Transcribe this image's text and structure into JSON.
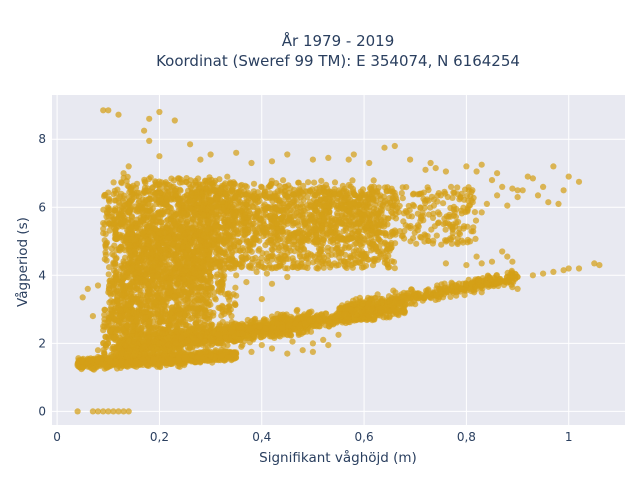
{
  "chart_data": {
    "type": "scatter",
    "title_line1": "År 1979 - 2019",
    "title_line2": "Koordinat (Sweref 99 TM): E 354074, N 6164254",
    "xlabel": "Signifikant våghöjd (m)",
    "ylabel": "Vågperiod (s)",
    "xlim": [
      -0.01,
      1.11
    ],
    "ylim": [
      -0.4,
      9.3
    ],
    "grid": true,
    "legend": "none",
    "marker_color": "#D4A017",
    "background_color": "#E8E9F1",
    "x_ticks": [
      {
        "value": 0,
        "label": "0"
      },
      {
        "value": 0.2,
        "label": "0,2"
      },
      {
        "value": 0.4,
        "label": "0,4"
      },
      {
        "value": 0.6,
        "label": "0,6"
      },
      {
        "value": 0.8,
        "label": "0,8"
      },
      {
        "value": 1,
        "label": "1"
      }
    ],
    "y_ticks": [
      {
        "value": 0,
        "label": "0"
      },
      {
        "value": 2,
        "label": "2"
      },
      {
        "value": 4,
        "label": "4"
      },
      {
        "value": 6,
        "label": "6"
      },
      {
        "value": 8,
        "label": "8"
      }
    ],
    "points": [
      [
        0.09,
        8.85
      ],
      [
        0.1,
        8.85
      ],
      [
        0.12,
        8.72
      ],
      [
        0.2,
        8.8
      ],
      [
        0.18,
        8.6
      ],
      [
        0.23,
        8.55
      ],
      [
        0.17,
        8.25
      ],
      [
        0.18,
        7.95
      ],
      [
        0.26,
        7.85
      ],
      [
        0.2,
        7.5
      ],
      [
        0.14,
        7.2
      ],
      [
        0.28,
        7.4
      ],
      [
        0.3,
        7.55
      ],
      [
        0.35,
        7.6
      ],
      [
        0.13,
        7.0
      ],
      [
        0.38,
        7.3
      ],
      [
        0.42,
        7.35
      ],
      [
        0.45,
        7.55
      ],
      [
        0.5,
        7.4
      ],
      [
        0.53,
        7.45
      ],
      [
        0.58,
        7.55
      ],
      [
        0.57,
        7.4
      ],
      [
        0.61,
        7.3
      ],
      [
        0.64,
        7.75
      ],
      [
        0.66,
        7.8
      ],
      [
        0.69,
        7.4
      ],
      [
        0.72,
        7.1
      ],
      [
        0.73,
        7.3
      ],
      [
        0.74,
        7.15
      ],
      [
        0.76,
        7.05
      ],
      [
        0.8,
        7.2
      ],
      [
        0.82,
        7.05
      ],
      [
        0.83,
        7.25
      ],
      [
        0.85,
        6.8
      ],
      [
        0.86,
        7.0
      ],
      [
        0.87,
        6.6
      ],
      [
        0.89,
        6.55
      ],
      [
        0.9,
        6.5
      ],
      [
        0.92,
        6.9
      ],
      [
        0.93,
        6.85
      ],
      [
        0.95,
        6.6
      ],
      [
        0.97,
        7.2
      ],
      [
        0.99,
        6.5
      ],
      [
        1.0,
        6.9
      ],
      [
        1.02,
        6.75
      ],
      [
        0.94,
        6.35
      ],
      [
        0.98,
        6.1
      ],
      [
        0.96,
        6.15
      ],
      [
        0.88,
        6.05
      ],
      [
        0.84,
        6.1
      ],
      [
        0.83,
        5.85
      ],
      [
        0.79,
        5.9
      ],
      [
        0.78,
        5.95
      ],
      [
        0.75,
        6.35
      ],
      [
        0.77,
        6.6
      ],
      [
        0.81,
        6.45
      ],
      [
        0.86,
        6.35
      ],
      [
        0.91,
        6.5
      ],
      [
        0.9,
        6.3
      ],
      [
        0.81,
        6.2
      ],
      [
        0.71,
        5.6
      ],
      [
        0.67,
        5.3
      ],
      [
        0.63,
        5.5
      ],
      [
        0.62,
        4.9
      ],
      [
        0.58,
        4.7
      ],
      [
        0.55,
        4.3
      ],
      [
        0.51,
        4.2
      ],
      [
        0.58,
        4.35
      ],
      [
        0.39,
        4.1
      ],
      [
        0.41,
        4.05
      ],
      [
        0.45,
        3.95
      ],
      [
        0.48,
        4.25
      ],
      [
        0.43,
        4.45
      ],
      [
        0.35,
        4.0
      ],
      [
        0.22,
        3.9
      ],
      [
        0.17,
        3.7
      ],
      [
        0.05,
        3.35
      ],
      [
        0.06,
        3.6
      ],
      [
        0.08,
        3.7
      ],
      [
        0.1,
        3.5
      ],
      [
        0.07,
        2.8
      ],
      [
        0.09,
        2.5
      ],
      [
        0.1,
        2.2
      ],
      [
        0.12,
        2.65
      ],
      [
        0.13,
        2.4
      ],
      [
        0.15,
        2.9
      ],
      [
        0.08,
        1.8
      ],
      [
        0.09,
        2.0
      ],
      [
        0.11,
        1.9
      ],
      [
        0.14,
        2.05
      ],
      [
        0.31,
        1.8
      ],
      [
        0.33,
        1.75
      ],
      [
        0.36,
        1.9
      ],
      [
        0.4,
        1.95
      ],
      [
        0.42,
        1.85
      ],
      [
        0.46,
        2.05
      ],
      [
        0.5,
        2.0
      ],
      [
        0.52,
        2.1
      ],
      [
        0.55,
        2.25
      ],
      [
        0.53,
        1.95
      ],
      [
        0.5,
        1.75
      ],
      [
        0.48,
        1.8
      ],
      [
        0.45,
        1.7
      ],
      [
        0.3,
        1.65
      ],
      [
        0.28,
        1.7
      ],
      [
        0.25,
        1.55
      ],
      [
        0.38,
        1.75
      ],
      [
        0.62,
        2.7
      ],
      [
        0.65,
        2.8
      ],
      [
        0.7,
        3.15
      ],
      [
        0.72,
        3.4
      ],
      [
        0.75,
        3.45
      ],
      [
        0.78,
        3.5
      ],
      [
        0.8,
        3.55
      ],
      [
        0.82,
        3.6
      ],
      [
        0.84,
        3.75
      ],
      [
        0.86,
        3.8
      ],
      [
        0.88,
        3.85
      ],
      [
        0.9,
        3.95
      ],
      [
        0.93,
        4.0
      ],
      [
        0.95,
        4.05
      ],
      [
        0.97,
        4.1
      ],
      [
        0.99,
        4.15
      ],
      [
        1.0,
        4.2
      ],
      [
        1.02,
        4.2
      ],
      [
        1.05,
        4.35
      ],
      [
        1.06,
        4.3
      ],
      [
        0.87,
        4.7
      ],
      [
        0.85,
        4.4
      ],
      [
        0.82,
        4.55
      ],
      [
        0.89,
        4.4
      ],
      [
        0.88,
        4.55
      ],
      [
        0.76,
        4.35
      ],
      [
        0.8,
        4.3
      ],
      [
        0.83,
        4.35
      ],
      [
        0.79,
        3.6
      ],
      [
        0.78,
        3.4
      ],
      [
        0.83,
        3.5
      ],
      [
        0.89,
        3.65
      ],
      [
        0.9,
        3.6
      ],
      [
        0.3,
        3.6
      ],
      [
        0.35,
        3.4
      ],
      [
        0.4,
        3.3
      ],
      [
        0.37,
        3.8
      ],
      [
        0.42,
        3.75
      ],
      [
        0.04,
        0.0
      ],
      [
        0.07,
        0.0
      ],
      [
        0.08,
        0.0
      ],
      [
        0.09,
        0.0
      ],
      [
        0.1,
        0.0
      ],
      [
        0.11,
        0.0
      ],
      [
        0.12,
        0.0
      ],
      [
        0.13,
        0.0
      ],
      [
        0.14,
        0.0
      ],
      [
        0.04,
        1.4
      ],
      [
        0.04,
        1.35
      ],
      [
        0.05,
        1.3
      ],
      [
        0.05,
        1.5
      ],
      [
        0.06,
        1.45
      ],
      [
        0.06,
        1.55
      ],
      [
        0.07,
        1.25
      ],
      [
        0.08,
        1.6
      ],
      [
        0.25,
        1.65
      ],
      [
        0.29,
        1.75
      ]
    ],
    "regions": [
      {
        "x": [
          0.09,
          0.66
        ],
        "y": [
          4.2,
          6.5
        ],
        "n": 1400
      },
      {
        "x": [
          0.11,
          0.35
        ],
        "y": [
          2.8,
          6.9
        ],
        "n": 900
      },
      {
        "x": [
          0.26,
          0.62
        ],
        "y": [
          5.0,
          6.8
        ],
        "n": 500
      },
      {
        "x": [
          0.5,
          0.82
        ],
        "y": [
          4.9,
          6.6
        ],
        "n": 320
      },
      {
        "x": [
          0.1,
          0.3
        ],
        "y": [
          2.2,
          4.2
        ],
        "n": 500
      },
      {
        "x": [
          0.09,
          0.25
        ],
        "y": [
          1.3,
          3.0
        ],
        "n": 400
      },
      {
        "x": [
          0.14,
          0.3
        ],
        "y": [
          3.8,
          5.4
        ],
        "n": 350
      }
    ],
    "bands": [
      {
        "x": [
          0.04,
          0.35
        ],
        "y_at_start": 1.4,
        "y_at_end": 1.65,
        "spread": 0.14,
        "n": 900
      },
      {
        "x": [
          0.12,
          0.5
        ],
        "y_at_start": 1.8,
        "y_at_end": 2.65,
        "spread": 0.3,
        "n": 800
      },
      {
        "x": [
          0.3,
          0.68
        ],
        "y_at_start": 2.2,
        "y_at_end": 3.05,
        "spread": 0.22,
        "n": 650
      },
      {
        "x": [
          0.55,
          0.9
        ],
        "y_at_start": 2.95,
        "y_at_end": 3.95,
        "spread": 0.2,
        "n": 450
      }
    ]
  }
}
